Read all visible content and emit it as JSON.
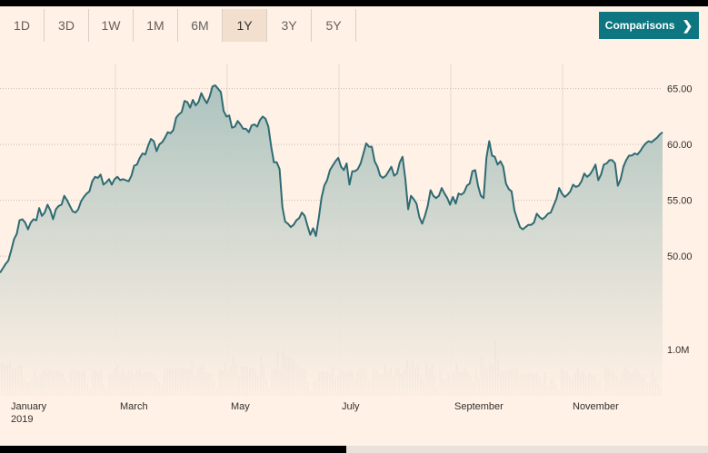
{
  "tabs": [
    {
      "label": "1D"
    },
    {
      "label": "3D"
    },
    {
      "label": "1W"
    },
    {
      "label": "1M"
    },
    {
      "label": "6M",
      "active": false
    },
    {
      "label": "1Y",
      "active": true
    },
    {
      "label": "3Y"
    },
    {
      "label": "5Y"
    }
  ],
  "comparisons": {
    "label": "Comparisons"
  },
  "icons": {
    "comparisons_arrow": "chevron-right-icon"
  },
  "colors": {
    "line": "#2e6b73",
    "fill_top": "#a9c1bd",
    "volume": "#cdbfb2",
    "accent": "#0d7680"
  },
  "chart_data": {
    "type": "line",
    "y_ticks": [
      "65.00",
      "60.00",
      "55.00",
      "50.00"
    ],
    "y_tick_values": [
      65,
      60,
      55,
      50
    ],
    "ylim": [
      43.5,
      66.6
    ],
    "volume_tick": "1.0M",
    "volume_tick_value": 1.0,
    "x_labels": [
      "January",
      "March",
      "May",
      "July",
      "September",
      "November"
    ],
    "x_sublabel": "2019",
    "series": [
      {
        "values": [
          48.5,
          48.9,
          49.3,
          49.6,
          50.5,
          51.5,
          52.0,
          53.2,
          53.3,
          53.0,
          52.4,
          53.0,
          53.3,
          53.2,
          54.3,
          53.6,
          53.9,
          54.6,
          54.1,
          53.3,
          54.2,
          54.5,
          54.6,
          55.4,
          55.0,
          54.5,
          54.0,
          53.9,
          54.2,
          54.9,
          55.3,
          55.6,
          55.8,
          56.7,
          57.1,
          57.0,
          57.3,
          56.4,
          56.6,
          56.9,
          56.4,
          56.9,
          57.1,
          56.8,
          56.9,
          56.8,
          56.7,
          57.2,
          58.1,
          58.2,
          58.8,
          59.2,
          59.1,
          59.9,
          60.5,
          60.3,
          59.4,
          60.0,
          60.2,
          60.6,
          61.1,
          61.0,
          61.3,
          62.4,
          62.7,
          62.9,
          63.9,
          63.8,
          63.3,
          64.0,
          63.5,
          63.8,
          64.6,
          64.1,
          63.7,
          64.3,
          65.2,
          65.3,
          65.0,
          64.7,
          63.0,
          62.5,
          62.6,
          61.5,
          61.6,
          62.1,
          61.8,
          61.4,
          61.4,
          61.1,
          61.7,
          61.8,
          61.6,
          62.2,
          62.5,
          62.3,
          61.6,
          59.8,
          58.4,
          58.4,
          57.8,
          54.4,
          53.1,
          52.9,
          52.6,
          52.8,
          53.2,
          53.4,
          53.9,
          53.6,
          52.7,
          51.9,
          52.5,
          51.8,
          53.4,
          55.2,
          56.3,
          56.8,
          57.7,
          58.1,
          58.5,
          58.8,
          58.0,
          57.7,
          58.3,
          56.4,
          57.6,
          57.6,
          57.8,
          58.3,
          59.2,
          60.1,
          59.8,
          59.8,
          58.5,
          58.0,
          57.2,
          57.0,
          57.2,
          57.6,
          58.0,
          57.2,
          57.4,
          58.4,
          58.9,
          56.9,
          54.2,
          55.4,
          55.1,
          54.7,
          53.5,
          52.9,
          53.6,
          54.5,
          55.9,
          55.4,
          55.2,
          55.4,
          56.1,
          55.6,
          55.2,
          54.6,
          55.3,
          54.7,
          55.6,
          55.5,
          55.7,
          56.3,
          56.5,
          57.6,
          57.7,
          56.3,
          55.4,
          55.2,
          58.8,
          60.3,
          59.0,
          58.9,
          58.2,
          58.5,
          58.0,
          56.5,
          56.0,
          55.8,
          54.1,
          53.3,
          52.6,
          52.4,
          52.6,
          52.8,
          52.8,
          53.0,
          53.8,
          53.5,
          53.3,
          53.5,
          53.8,
          53.9,
          54.5,
          55.1,
          56.1,
          55.6,
          55.3,
          55.5,
          55.8,
          56.4,
          56.2,
          56.3,
          56.7,
          57.4,
          57.1,
          57.3,
          57.7,
          58.2,
          56.8,
          57.3,
          58.2,
          58.3,
          58.6,
          58.6,
          58.3,
          56.3,
          56.9,
          58.0,
          58.6,
          59.0,
          59.0,
          59.2,
          59.1,
          59.4,
          59.8,
          60.1,
          60.3,
          60.2,
          60.4,
          60.6,
          60.9,
          61.1
        ]
      }
    ],
    "volume": [
      0.72,
      0.69,
      0.67,
      0.73,
      0.6,
      0.61,
      0.64,
      0.67,
      0.37,
      0.3,
      0.31,
      0.36,
      0.54,
      0.41,
      0.45,
      0.55,
      0.59,
      0.55,
      0.56,
      0.54,
      0.55,
      0.54,
      0.51,
      0.38,
      0.3,
      0.56,
      0.57,
      0.58,
      0.54,
      0.54,
      0.56,
      0.28,
      0.14,
      0.56,
      0.55,
      0.52,
      0.55,
      0.27,
      0.15,
      0.45,
      0.51,
      0.59,
      0.67,
      0.47,
      0.58,
      0.44,
      0.53,
      0.57,
      0.47,
      0.55,
      0.56,
      0.47,
      0.52,
      0.51,
      0.5,
      0.47,
      0.4,
      0.3,
      0.22,
      0.58,
      0.58,
      0.58,
      0.58,
      0.57,
      0.58,
      0.58,
      0.6,
      0.58,
      0.57,
      0.74,
      0.41,
      0.56,
      0.62,
      0.67,
      0.52,
      0.48,
      0.47,
      0.32,
      0.17,
      0.58,
      0.55,
      0.74,
      0.53,
      0.65,
      0.87,
      0.67,
      0.43,
      0.63,
      0.66,
      0.64,
      0.59,
      0.6,
      0.55,
      0.44,
      0.88,
      0.66,
      0.35,
      0.18,
      0.56,
      0.57,
      0.98,
      0.56,
      1.0,
      0.87,
      0.84,
      0.84,
      0.79,
      0.67,
      0.63,
      0.58,
      0.57,
      0.31,
      0.11,
      0.3,
      0.36,
      0.5,
      0.53,
      0.53,
      0.53,
      0.48,
      0.63,
      0.39,
      0.42,
      0.55,
      0.55,
      0.51,
      0.54,
      0.56,
      0.35,
      0.54,
      0.55,
      0.6,
      0.58,
      0.35,
      0.37,
      0.58,
      0.55,
      0.46,
      0.45,
      0.69,
      0.52,
      0.61,
      0.43,
      0.58,
      0.6,
      0.48,
      0.56,
      0.76,
      0.64,
      0.79,
      0.58,
      0.65,
      0.47,
      0.33,
      0.73,
      0.59,
      0.68,
      0.42,
      0.2,
      0.55,
      0.37,
      0.35,
      0.46,
      0.38,
      0.51,
      0.72,
      0.53,
      0.52,
      0.6,
      0.52,
      0.43,
      0.32,
      0.57,
      0.38,
      0.85,
      0.64,
      0.58,
      0.71,
      0.66,
      1.22,
      0.79,
      0.52,
      0.54,
      0.54,
      0.58,
      0.59,
      0.6,
      0.59,
      0.45,
      0.47,
      0.48,
      0.49,
      0.52,
      0.47,
      0.5,
      0.41,
      0.31,
      0.51,
      0.22,
      0.38,
      0.4,
      0.24,
      0.13,
      0.59,
      0.54,
      0.54,
      0.44,
      0.35,
      0.49,
      0.58,
      0.48,
      0.54,
      0.39,
      0.5,
      0.45,
      0.43,
      0.31,
      0.35,
      0.17,
      0.63,
      0.6,
      0.55,
      0.52,
      0.41,
      0.33,
      0.5,
      0.63,
      0.55,
      0.49,
      0.53,
      0.6,
      0.54,
      0.45,
      0.4,
      0.29,
      0.29,
      0.55,
      0.4,
      0.26,
      0.2
    ]
  }
}
